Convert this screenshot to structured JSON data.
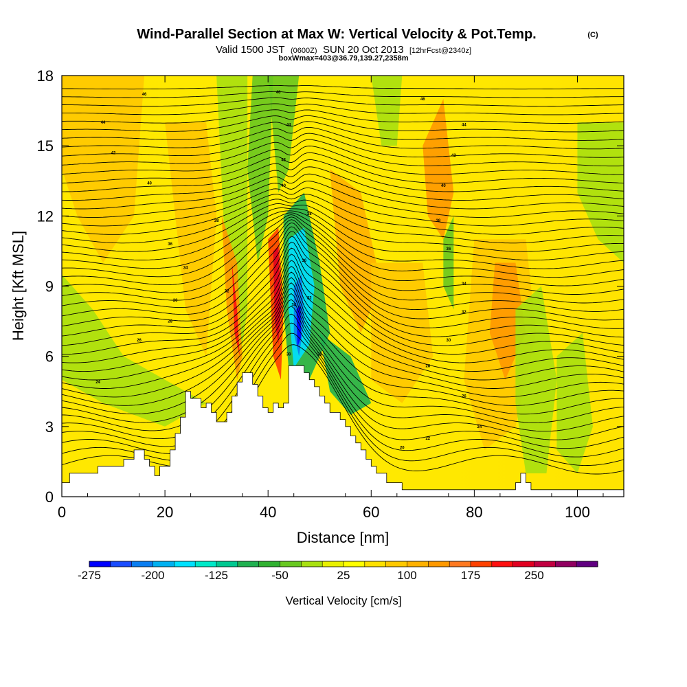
{
  "chart_data": {
    "type": "heatmap",
    "title": "Wind-Parallel Section at Max W: Vertical Velocity & Pot.Temp.",
    "title_unit": "(C)",
    "subtitle_parts": [
      "Valid 1500 JST",
      "(0600Z)",
      "SUN 20 Oct 2013",
      "[12hrFcst@2340z]"
    ],
    "subtitle2": "boxWmax=403@36.79,139.27,2358m",
    "xlabel": "Distance [nm]",
    "ylabel": "Height [Kft MSL]",
    "xlim": [
      0,
      109
    ],
    "ylim": [
      0,
      18
    ],
    "xticks": [
      0,
      20,
      40,
      60,
      80,
      100
    ],
    "yticks": [
      0,
      3,
      6,
      9,
      12,
      15,
      18
    ],
    "colorbar": {
      "label": "Vertical Velocity [cm/s]",
      "tick_labels": [
        "-275",
        "-200",
        "-125",
        "-50",
        "25",
        "100",
        "175",
        "250"
      ],
      "colors": [
        "#0000ff",
        "#1a4cff",
        "#0a7df0",
        "#00b0f0",
        "#00e0ff",
        "#00e8c8",
        "#00c890",
        "#20b050",
        "#30b030",
        "#68c820",
        "#a8e010",
        "#e8f000",
        "#ffff00",
        "#ffe000",
        "#ffc800",
        "#ffb000",
        "#ff9800",
        "#ff7820",
        "#ff4000",
        "#ff1010",
        "#e00020",
        "#c00040",
        "#900060",
        "#600080"
      ]
    },
    "contour_labels": [
      {
        "x": 8,
        "y": 16.0,
        "text": "44"
      },
      {
        "x": 10,
        "y": 14.7,
        "text": "42"
      },
      {
        "x": 17,
        "y": 13.4,
        "text": "40"
      },
      {
        "x": 21,
        "y": 10.8,
        "text": "36"
      },
      {
        "x": 24,
        "y": 9.8,
        "text": "34"
      },
      {
        "x": 22,
        "y": 8.4,
        "text": "30"
      },
      {
        "x": 21,
        "y": 7.5,
        "text": "28"
      },
      {
        "x": 15,
        "y": 6.7,
        "text": "26"
      },
      {
        "x": 7,
        "y": 4.9,
        "text": "24"
      },
      {
        "x": 16,
        "y": 17.2,
        "text": "46"
      },
      {
        "x": 30,
        "y": 11.8,
        "text": "38"
      },
      {
        "x": 32,
        "y": 8.8,
        "text": "32"
      },
      {
        "x": 42,
        "y": 17.3,
        "text": "46"
      },
      {
        "x": 44,
        "y": 15.9,
        "text": "44"
      },
      {
        "x": 43,
        "y": 14.4,
        "text": "42"
      },
      {
        "x": 43,
        "y": 13.3,
        "text": "40"
      },
      {
        "x": 48,
        "y": 12.1,
        "text": "38"
      },
      {
        "x": 47,
        "y": 10.1,
        "text": "36"
      },
      {
        "x": 48,
        "y": 8.5,
        "text": "32"
      },
      {
        "x": 45,
        "y": 8.2,
        "text": "34"
      },
      {
        "x": 44,
        "y": 6.1,
        "text": "30"
      },
      {
        "x": 50,
        "y": 6.1,
        "text": "28"
      },
      {
        "x": 70,
        "y": 17.0,
        "text": "46"
      },
      {
        "x": 78,
        "y": 15.9,
        "text": "44"
      },
      {
        "x": 76,
        "y": 14.6,
        "text": "42"
      },
      {
        "x": 74,
        "y": 13.3,
        "text": "40"
      },
      {
        "x": 73,
        "y": 11.8,
        "text": "38"
      },
      {
        "x": 75,
        "y": 10.6,
        "text": "36"
      },
      {
        "x": 78,
        "y": 9.1,
        "text": "34"
      },
      {
        "x": 78,
        "y": 7.9,
        "text": "32"
      },
      {
        "x": 75,
        "y": 6.7,
        "text": "30"
      },
      {
        "x": 71,
        "y": 5.6,
        "text": "28"
      },
      {
        "x": 78,
        "y": 4.3,
        "text": "26"
      },
      {
        "x": 81,
        "y": 3.0,
        "text": "24"
      },
      {
        "x": 71,
        "y": 2.5,
        "text": "22"
      },
      {
        "x": 66,
        "y": 2.1,
        "text": "20"
      }
    ]
  }
}
